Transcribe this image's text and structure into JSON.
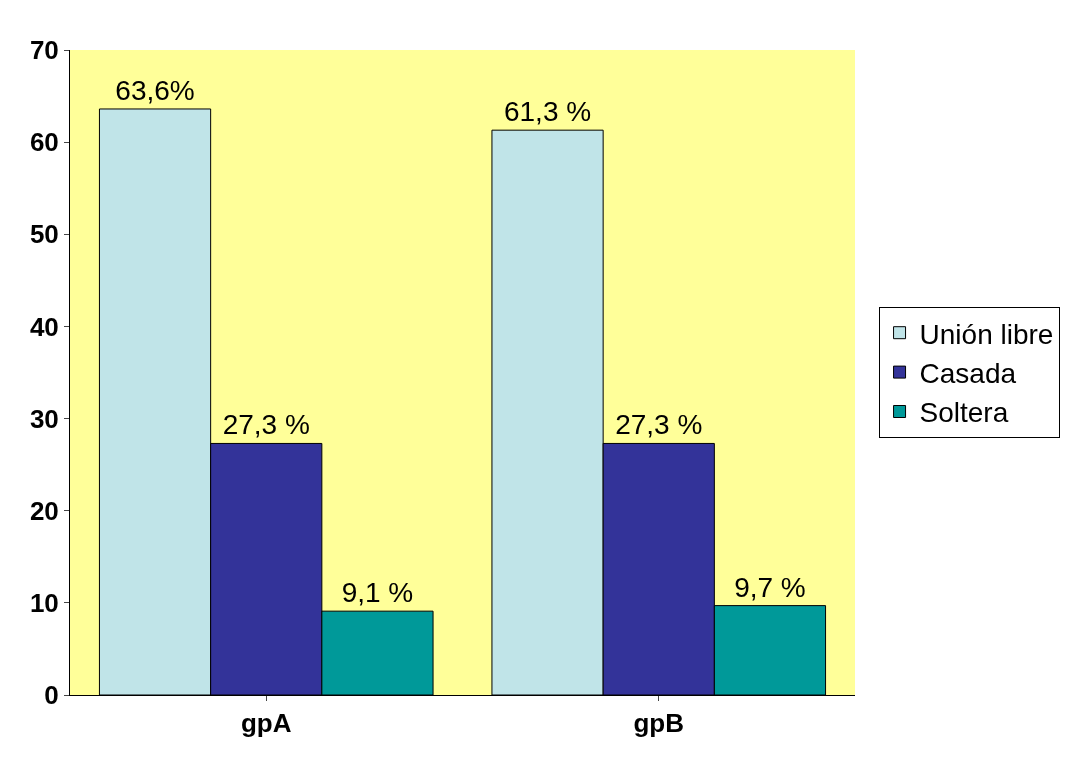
{
  "chart_data": {
    "type": "bar",
    "categories": [
      "gpA",
      "gpB"
    ],
    "series": [
      {
        "name": "Unión libre",
        "color": "#c0e4e8",
        "values": [
          63.6,
          61.3
        ],
        "value_labels": [
          "63,6%",
          "61,3 %"
        ]
      },
      {
        "name": "Casada",
        "color": "#333399",
        "values": [
          27.3,
          27.3
        ],
        "value_labels": [
          "27,3 %",
          "27,3 %"
        ]
      },
      {
        "name": "Soltera",
        "color": "#009999",
        "values": [
          9.1,
          9.7
        ],
        "value_labels": [
          "9,1 %",
          "9,7 %"
        ]
      }
    ],
    "ylim": [
      0,
      70
    ],
    "yticks": [
      0,
      10,
      20,
      30,
      40,
      50,
      60,
      70
    ],
    "grid": false,
    "legend": "right"
  }
}
